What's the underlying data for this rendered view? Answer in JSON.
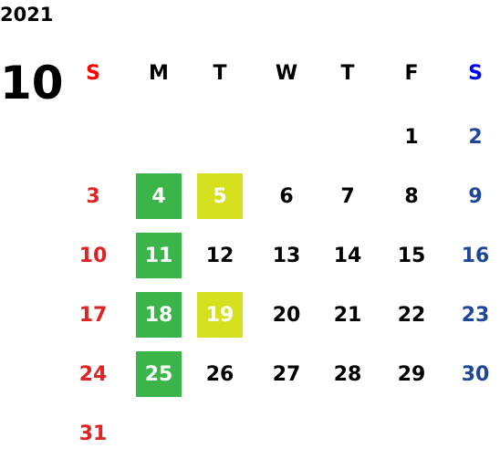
{
  "year": "2021",
  "month": "10",
  "weekdays": [
    "S",
    "M",
    "T",
    "W",
    "T",
    "F",
    "S"
  ],
  "header_colors": [
    "#ff0000",
    "#000000",
    "#000000",
    "#000000",
    "#000000",
    "#000000",
    "#0000ff"
  ],
  "day_colors": [
    "#e02424",
    "#000000",
    "#000000",
    "#000000",
    "#000000",
    "#000000",
    "#1e4799"
  ],
  "weeks": [
    [
      null,
      null,
      null,
      null,
      null,
      {
        "day": "1"
      },
      {
        "day": "2"
      }
    ],
    [
      {
        "day": "3"
      },
      {
        "day": "4",
        "bg": "#3bb54a"
      },
      {
        "day": "5",
        "bg": "#d5e01f"
      },
      {
        "day": "6"
      },
      {
        "day": "7"
      },
      {
        "day": "8"
      },
      {
        "day": "9"
      }
    ],
    [
      {
        "day": "10"
      },
      {
        "day": "11",
        "bg": "#3bb54a"
      },
      {
        "day": "12"
      },
      {
        "day": "13"
      },
      {
        "day": "14"
      },
      {
        "day": "15"
      },
      {
        "day": "16"
      }
    ],
    [
      {
        "day": "17"
      },
      {
        "day": "18",
        "bg": "#3bb54a"
      },
      {
        "day": "19",
        "bg": "#d5e01f"
      },
      {
        "day": "20"
      },
      {
        "day": "21"
      },
      {
        "day": "22"
      },
      {
        "day": "23"
      }
    ],
    [
      {
        "day": "24"
      },
      {
        "day": "25",
        "bg": "#3bb54a"
      },
      {
        "day": "26"
      },
      {
        "day": "27"
      },
      {
        "day": "28"
      },
      {
        "day": "29"
      },
      {
        "day": "30"
      }
    ],
    [
      {
        "day": "31"
      },
      null,
      null,
      null,
      null,
      null,
      null
    ]
  ]
}
